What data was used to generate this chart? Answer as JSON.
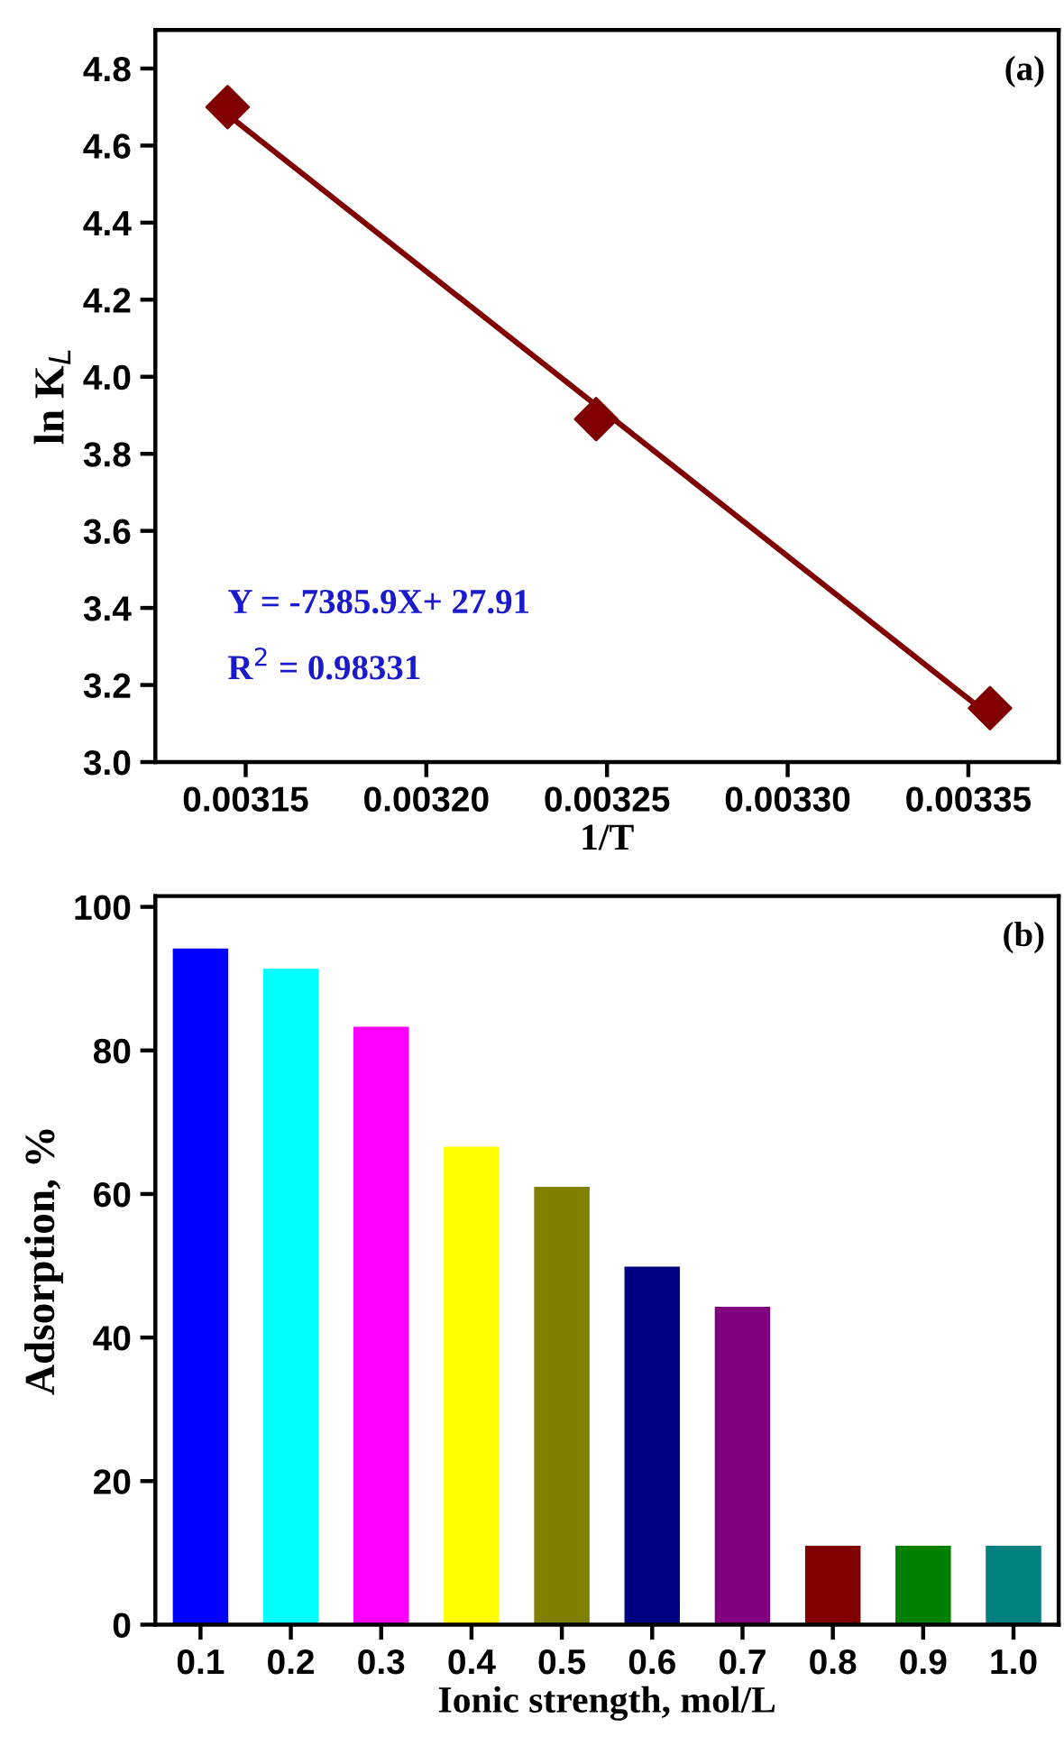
{
  "chart_data": [
    {
      "type": "scatter",
      "xlabel": "1/T",
      "ylabel": "ln K$_{L}$",
      "xlim": [
        0.003125,
        0.003375
      ],
      "xticks": [
        {
          "value": 0.00315,
          "label": "0.00315"
        },
        {
          "value": 0.0032,
          "label": "0.00320"
        },
        {
          "value": 0.00325,
          "label": "0.00325"
        },
        {
          "value": 0.0033,
          "label": "0.00330"
        },
        {
          "value": 0.00335,
          "label": "0.00335"
        }
      ],
      "ylim": [
        3.0,
        4.9
      ],
      "yticks": [
        {
          "value": 3.0,
          "label": "3.0"
        },
        3.2,
        3.4,
        3.6,
        3.8,
        {
          "value": 4.0,
          "label": "4.0"
        },
        4.2,
        4.4,
        4.6,
        4.8
      ],
      "grid": false,
      "legend": false,
      "series": [
        {
          "type": "scatter",
          "color": "#800000",
          "marker": "diamond",
          "x": [
            0.003145,
            0.003247,
            0.003356
          ],
          "values": [
            4.7,
            3.89,
            3.14
          ]
        },
        {
          "type": "line",
          "color": "#800000",
          "marker": "none",
          "line_style": "solid",
          "x": [
            0.003145,
            0.003356
          ],
          "values": [
            4.68,
            3.12
          ]
        }
      ],
      "annotations": [
        "(a)",
        "Y = -7385.9X+ 27.91",
        "R$^{2}$ = 0.98331"
      ]
    },
    {
      "type": "bar",
      "xlabel": "Ionic strength, mol/L",
      "ylabel": "Adsorption, %",
      "categories": [
        "0.1",
        "0.2",
        "0.3",
        "0.4",
        "0.5",
        "0.6",
        "0.7",
        "0.8",
        "0.9",
        "1.0"
      ],
      "values": [
        94.1,
        91.3,
        83.2,
        66.5,
        60.9,
        49.8,
        44.2,
        10.9,
        10.9,
        10.9
      ],
      "colors": [
        "#0000ff",
        "#00ffff",
        "#ff00ff",
        "#ffff00",
        "#808000",
        "#000080",
        "#800080",
        "#800000",
        "#008000",
        "#008080"
      ],
      "ylim": [
        0,
        101.5
      ],
      "yticks": [
        0,
        20,
        40,
        60,
        80,
        100
      ],
      "grid": false,
      "legend": false,
      "annotations": [
        "(b)"
      ]
    }
  ]
}
